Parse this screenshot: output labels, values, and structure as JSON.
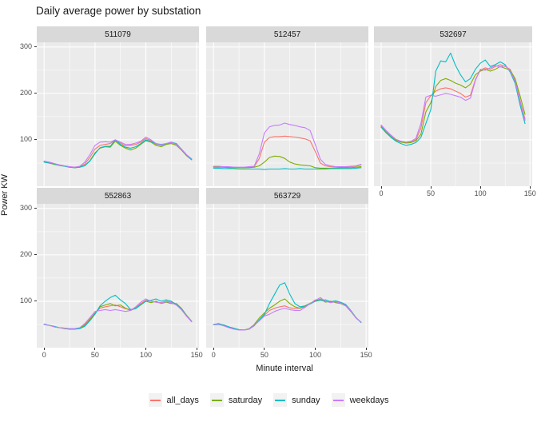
{
  "title": "Daily average power by substation",
  "axes": {
    "x_title": "Minute interval",
    "y_title": "Power KW",
    "x_ticks": [
      0,
      50,
      100,
      150
    ],
    "y_ticks": [
      100,
      200,
      300
    ]
  },
  "legend": {
    "items": [
      {
        "label": "all_days",
        "color": "#F8766D"
      },
      {
        "label": "saturday",
        "color": "#7CAE00"
      },
      {
        "label": "sunday",
        "color": "#00BFC4"
      },
      {
        "label": "weekdays",
        "color": "#C77CFF"
      }
    ]
  },
  "colors": {
    "panel_bg": "#EBEBEB",
    "strip_bg": "#D9D9D9",
    "grid": "#FFFFFF",
    "tick_text": "#4d4d4d",
    "title_text": "#1a1a1a",
    "legend_key_bg": "#F2F2F2"
  },
  "chart_data": {
    "type": "line",
    "title": "Daily average power by substation",
    "xlabel": "Minute interval",
    "ylabel": "Power KW",
    "xlim": [
      -7.25,
      152.25
    ],
    "ylim": [
      0,
      310
    ],
    "x_major_gridlines": [
      0,
      50,
      100,
      150
    ],
    "x_minor_gridlines": [
      25,
      75,
      125
    ],
    "y_major_gridlines": [
      100,
      200,
      300
    ],
    "y_minor_gridlines": [
      50,
      150,
      250
    ],
    "x": [
      0,
      5,
      10,
      15,
      20,
      25,
      30,
      35,
      40,
      45,
      50,
      55,
      60,
      65,
      70,
      75,
      80,
      85,
      90,
      95,
      100,
      105,
      110,
      115,
      120,
      125,
      130,
      135,
      140,
      145
    ],
    "series_names": [
      "all_days",
      "saturday",
      "sunday",
      "weekdays"
    ],
    "facets": [
      {
        "label": "511079",
        "row": 0,
        "col": 0,
        "show_x_axis": false,
        "show_y_axis": true,
        "series": {
          "all_days": [
            53,
            51,
            48,
            46,
            44,
            42,
            41,
            42,
            48,
            62,
            80,
            88,
            90,
            92,
            99,
            93,
            87,
            88,
            90,
            95,
            103,
            98,
            90,
            89,
            91,
            94,
            90,
            80,
            68,
            58
          ],
          "saturday": [
            52,
            50,
            47,
            45,
            43,
            41,
            40,
            41,
            45,
            55,
            72,
            82,
            85,
            84,
            97,
            88,
            82,
            78,
            82,
            90,
            98,
            95,
            88,
            85,
            90,
            92,
            88,
            78,
            66,
            57
          ],
          "sunday": [
            52,
            50,
            48,
            45,
            43,
            41,
            40,
            41,
            44,
            54,
            70,
            83,
            86,
            86,
            100,
            90,
            84,
            82,
            85,
            92,
            100,
            96,
            92,
            88,
            92,
            95,
            92,
            80,
            67,
            57
          ],
          "weekdays": [
            54,
            52,
            49,
            46,
            44,
            42,
            41,
            43,
            52,
            68,
            88,
            95,
            96,
            95,
            100,
            95,
            90,
            90,
            93,
            97,
            106,
            100,
            92,
            90,
            92,
            95,
            90,
            80,
            68,
            59
          ]
        }
      },
      {
        "label": "512457",
        "row": 0,
        "col": 1,
        "show_x_axis": false,
        "show_y_axis": false,
        "series": {
          "all_days": [
            42,
            42,
            41,
            41,
            41,
            40,
            40,
            41,
            42,
            60,
            95,
            105,
            107,
            107,
            108,
            107,
            106,
            104,
            102,
            98,
            75,
            50,
            44,
            42,
            41,
            41,
            41,
            42,
            43,
            46
          ],
          "saturday": [
            41,
            41,
            41,
            40,
            40,
            40,
            40,
            40,
            41,
            44,
            52,
            62,
            65,
            64,
            60,
            52,
            48,
            46,
            45,
            44,
            40,
            39,
            39,
            39,
            39,
            40,
            40,
            40,
            41,
            42
          ],
          "sunday": [
            39,
            39,
            38,
            38,
            38,
            37,
            37,
            37,
            37,
            37,
            36,
            37,
            37,
            37,
            38,
            37,
            37,
            38,
            37,
            37,
            37,
            37,
            37,
            38,
            38,
            38,
            38,
            38,
            39,
            40
          ],
          "weekdays": [
            43,
            43,
            42,
            42,
            41,
            41,
            41,
            42,
            43,
            70,
            115,
            128,
            131,
            132,
            136,
            133,
            131,
            128,
            126,
            120,
            90,
            58,
            47,
            44,
            42,
            42,
            42,
            43,
            44,
            47
          ]
        }
      },
      {
        "label": "532697",
        "row": 0,
        "col": 2,
        "show_x_axis": true,
        "show_y_axis": false,
        "series": {
          "all_days": [
            130,
            118,
            108,
            100,
            96,
            94,
            95,
            100,
            125,
            180,
            195,
            205,
            210,
            212,
            210,
            205,
            200,
            192,
            196,
            230,
            250,
            255,
            252,
            258,
            262,
            258,
            252,
            228,
            185,
            145
          ],
          "saturday": [
            128,
            116,
            106,
            99,
            95,
            93,
            94,
            98,
            112,
            160,
            180,
            215,
            228,
            232,
            228,
            222,
            218,
            212,
            220,
            240,
            248,
            252,
            248,
            252,
            258,
            254,
            250,
            232,
            195,
            155
          ],
          "sunday": [
            127,
            115,
            105,
            97,
            92,
            88,
            90,
            94,
            105,
            135,
            165,
            248,
            270,
            268,
            287,
            260,
            240,
            225,
            232,
            252,
            265,
            272,
            258,
            262,
            268,
            262,
            246,
            222,
            175,
            135
          ],
          "weekdays": [
            132,
            120,
            110,
            101,
            97,
            95,
            97,
            103,
            135,
            192,
            196,
            194,
            197,
            200,
            198,
            195,
            192,
            185,
            190,
            228,
            252,
            250,
            255,
            260,
            257,
            260,
            248,
            226,
            182,
            142
          ]
        }
      },
      {
        "label": "552863",
        "row": 1,
        "col": 0,
        "show_x_axis": true,
        "show_y_axis": true,
        "series": {
          "all_days": [
            50,
            48,
            45,
            43,
            42,
            40,
            40,
            42,
            50,
            62,
            75,
            85,
            88,
            90,
            92,
            88,
            84,
            82,
            86,
            95,
            102,
            100,
            98,
            97,
            100,
            98,
            92,
            82,
            68,
            56
          ],
          "saturday": [
            50,
            48,
            45,
            43,
            41,
            40,
            40,
            42,
            48,
            60,
            74,
            88,
            92,
            95,
            90,
            92,
            85,
            80,
            85,
            93,
            100,
            97,
            100,
            95,
            98,
            95,
            95,
            85,
            70,
            57
          ],
          "sunday": [
            51,
            48,
            46,
            43,
            42,
            40,
            40,
            41,
            46,
            58,
            72,
            90,
            100,
            108,
            113,
            103,
            95,
            82,
            84,
            92,
            100,
            102,
            105,
            100,
            103,
            100,
            93,
            83,
            69,
            56
          ],
          "weekdays": [
            50,
            48,
            45,
            43,
            42,
            41,
            41,
            43,
            52,
            65,
            78,
            80,
            82,
            80,
            82,
            80,
            78,
            80,
            88,
            98,
            105,
            100,
            98,
            96,
            99,
            97,
            92,
            82,
            68,
            56
          ]
        }
      },
      {
        "label": "563729",
        "row": 1,
        "col": 1,
        "show_x_axis": true,
        "show_y_axis": false,
        "series": {
          "all_days": [
            50,
            51,
            48,
            44,
            41,
            39,
            38,
            40,
            48,
            60,
            70,
            80,
            85,
            88,
            90,
            86,
            84,
            85,
            88,
            95,
            103,
            102,
            100,
            98,
            100,
            97,
            92,
            80,
            65,
            55
          ],
          "saturday": [
            50,
            52,
            48,
            44,
            41,
            39,
            38,
            41,
            50,
            64,
            75,
            85,
            92,
            100,
            105,
            95,
            88,
            85,
            90,
            96,
            100,
            105,
            98,
            100,
            97,
            95,
            90,
            78,
            64,
            55
          ],
          "sunday": [
            50,
            51,
            49,
            45,
            42,
            39,
            38,
            40,
            47,
            60,
            72,
            95,
            115,
            135,
            140,
            115,
            95,
            88,
            90,
            94,
            100,
            102,
            103,
            99,
            101,
            98,
            93,
            80,
            65,
            54
          ],
          "weekdays": [
            49,
            50,
            47,
            43,
            40,
            38,
            38,
            40,
            48,
            58,
            68,
            72,
            78,
            82,
            85,
            82,
            80,
            80,
            87,
            95,
            102,
            108,
            100,
            97,
            99,
            96,
            91,
            79,
            64,
            55
          ]
        }
      }
    ]
  }
}
